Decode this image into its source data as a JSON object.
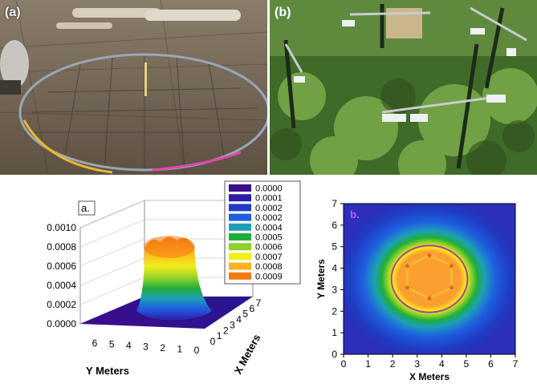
{
  "photos": {
    "a": {
      "label": "(a)"
    },
    "b": {
      "label": "(b)"
    }
  },
  "chart_data": [
    {
      "type": "surface",
      "panel_label": "a.",
      "xlabel": "X Meters",
      "ylabel": "Y Meters",
      "zlim": [
        0,
        0.001
      ],
      "z_ticks": [
        "0.0000",
        "0.0002",
        "0.0004",
        "0.0006",
        "0.0008",
        "0.0010"
      ],
      "x_ticks": [
        "0",
        "1",
        "2",
        "3",
        "4",
        "5",
        "6",
        "7"
      ],
      "y_ticks": [
        "6",
        "5",
        "4",
        "3",
        "2",
        "1",
        "0"
      ],
      "peak_value": 0.00095,
      "plateau_center": [
        3.5,
        3.5
      ],
      "plateau_radius_m": 1.5,
      "legend_position": "top-right",
      "legend": [
        {
          "label": "0.0000",
          "color": "#3a0d8c"
        },
        {
          "label": "0.0001",
          "color": "#2d1ea8"
        },
        {
          "label": "0.0002",
          "color": "#1f3cc4"
        },
        {
          "label": "0.0002",
          "color": "#1e5fe0"
        },
        {
          "label": "0.0004",
          "color": "#1d9fb8"
        },
        {
          "label": "0.0005",
          "color": "#1fae3a"
        },
        {
          "label": "0.0006",
          "color": "#8ed02a"
        },
        {
          "label": "0.0007",
          "color": "#f2ee1c"
        },
        {
          "label": "0.0008",
          "color": "#fbb21e"
        },
        {
          "label": "0.0009",
          "color": "#f57a12"
        }
      ]
    },
    {
      "type": "heatmap",
      "panel_label": "b.",
      "xlabel": "X Meters",
      "ylabel": "Y Meters",
      "xlim": [
        0,
        7
      ],
      "ylim": [
        0,
        7
      ],
      "x_ticks": [
        "0",
        "1",
        "2",
        "3",
        "4",
        "5",
        "6",
        "7"
      ],
      "y_ticks": [
        "0",
        "1",
        "2",
        "3",
        "4",
        "5",
        "6",
        "7"
      ],
      "center": [
        3.5,
        3.5
      ],
      "plot_boundary_radius_m": 1.55,
      "sensor_points": [
        [
          3.5,
          4.6
        ],
        [
          4.4,
          4.1
        ],
        [
          4.4,
          3.1
        ],
        [
          3.5,
          2.6
        ],
        [
          2.6,
          3.1
        ],
        [
          2.6,
          4.1
        ]
      ],
      "grid": false
    }
  ]
}
